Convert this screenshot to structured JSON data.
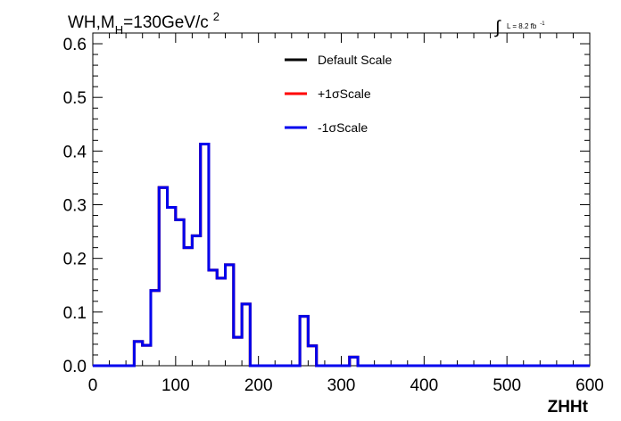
{
  "title": {
    "main": "WH,M",
    "sub": "H",
    "mid": "=130GeV/c",
    "sup": "2"
  },
  "lumi": {
    "symbol": "∫",
    "text": "L = 8.2 fb",
    "sup": "-1"
  },
  "chart_data": {
    "type": "line",
    "style": "step histogram",
    "xlabel": "ZHHt",
    "ylabel": "",
    "xlim": [
      0,
      600
    ],
    "ylim": [
      0,
      0.62
    ],
    "x_ticks": [
      0,
      100,
      200,
      300,
      400,
      500,
      600
    ],
    "x_tick_labels": [
      "0",
      "100",
      "200",
      "300",
      "400",
      "500",
      "600"
    ],
    "y_ticks": [
      0,
      0.1,
      0.2,
      0.3,
      0.4,
      0.5,
      0.6
    ],
    "y_tick_labels": [
      "0.0",
      "0.1",
      "0.2",
      "0.3",
      "0.4",
      "0.5",
      "0.6"
    ],
    "bin_edges": [
      0,
      10,
      20,
      30,
      40,
      50,
      60,
      70,
      80,
      90,
      100,
      110,
      120,
      130,
      140,
      150,
      160,
      170,
      180,
      190,
      200,
      210,
      220,
      230,
      240,
      250,
      260,
      270,
      280,
      290,
      300,
      310,
      320,
      330,
      340,
      350,
      360,
      370,
      380,
      390,
      400,
      410,
      420,
      430,
      440,
      450,
      460,
      470,
      480,
      490,
      500,
      510,
      520,
      530,
      540,
      550,
      560,
      570,
      580,
      590,
      600
    ],
    "grid": false,
    "legend_position": "top-right",
    "series": [
      {
        "name": "Default Scale",
        "color": "#000000",
        "values": [
          0,
          0,
          0,
          0,
          0,
          0.045,
          0.038,
          0.14,
          0.332,
          0.295,
          0.272,
          0.22,
          0.242,
          0.413,
          0.178,
          0.163,
          0.188,
          0.053,
          0.115,
          0,
          0,
          0,
          0,
          0,
          0,
          0.092,
          0.037,
          0,
          0,
          0,
          0,
          0.016,
          0,
          0,
          0,
          0,
          0,
          0,
          0,
          0,
          0,
          0,
          0,
          0,
          0,
          0,
          0,
          0,
          0,
          0,
          0,
          0,
          0,
          0,
          0,
          0,
          0,
          0,
          0,
          0
        ]
      },
      {
        "name": "+1σScale",
        "color": "#ff0000",
        "values": [
          0,
          0,
          0,
          0,
          0,
          0.045,
          0.038,
          0.14,
          0.332,
          0.295,
          0.272,
          0.22,
          0.242,
          0.413,
          0.178,
          0.163,
          0.188,
          0.053,
          0.115,
          0,
          0,
          0,
          0,
          0,
          0,
          0.092,
          0.037,
          0,
          0,
          0,
          0,
          0.016,
          0,
          0,
          0,
          0,
          0,
          0,
          0,
          0,
          0,
          0,
          0,
          0,
          0,
          0,
          0,
          0,
          0,
          0,
          0,
          0,
          0,
          0,
          0,
          0,
          0,
          0,
          0,
          0
        ]
      },
      {
        "name": "-1σScale",
        "color": "#0000ee",
        "values": [
          0,
          0,
          0,
          0,
          0,
          0.045,
          0.038,
          0.14,
          0.332,
          0.295,
          0.272,
          0.22,
          0.242,
          0.413,
          0.178,
          0.163,
          0.188,
          0.053,
          0.115,
          0,
          0,
          0,
          0,
          0,
          0,
          0.092,
          0.037,
          0,
          0,
          0,
          0,
          0.016,
          0,
          0,
          0,
          0,
          0,
          0,
          0,
          0,
          0,
          0,
          0,
          0,
          0,
          0,
          0,
          0,
          0,
          0,
          0,
          0,
          0,
          0,
          0,
          0,
          0,
          0,
          0,
          0
        ]
      }
    ]
  }
}
